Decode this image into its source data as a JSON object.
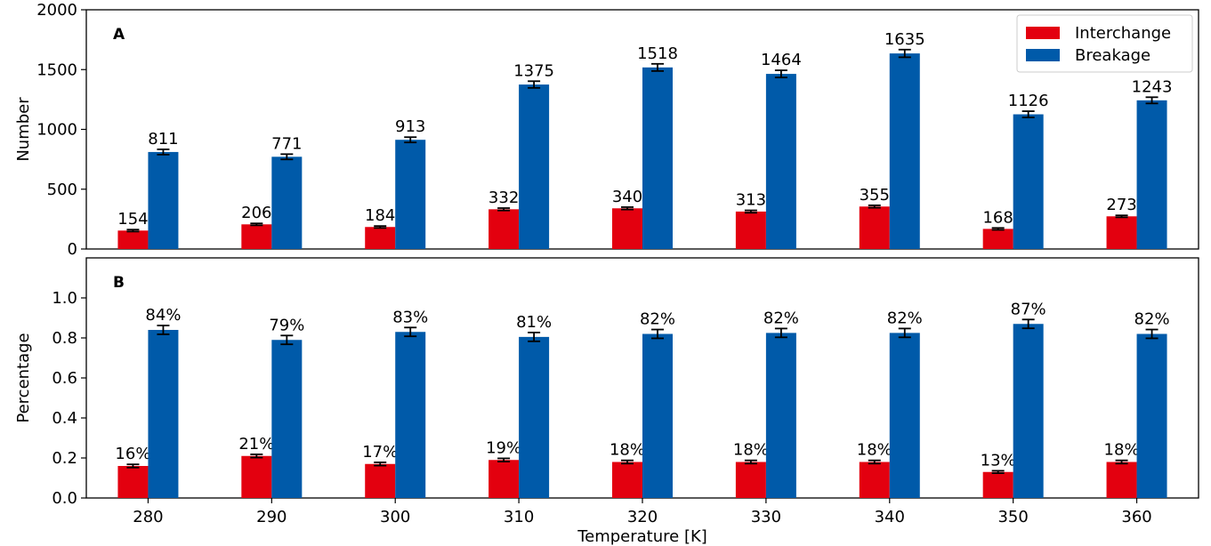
{
  "figure": {
    "xlabel": "Temperature [K]"
  },
  "legend": [
    {
      "label": "Interchange",
      "color": "#e3000f"
    },
    {
      "label": "Breakage",
      "color": "#005aa9"
    }
  ],
  "chart_data": [
    {
      "type": "bar",
      "panel_label": "A",
      "ylabel": "Number",
      "xlabel": "",
      "categories": [
        "280",
        "290",
        "300",
        "310",
        "320",
        "330",
        "340",
        "350",
        "360"
      ],
      "ylim": [
        0,
        2000
      ],
      "yticks": [
        "0",
        "500",
        "1000",
        "1500",
        "2000"
      ],
      "ytick_values": [
        0,
        500,
        1000,
        1500,
        2000
      ],
      "legend_position": "top-right",
      "series": [
        {
          "name": "Interchange",
          "color": "#e3000f",
          "values": [
            154,
            206,
            184,
            332,
            340,
            313,
            355,
            168,
            273
          ],
          "errors": [
            8,
            8,
            8,
            10,
            10,
            10,
            10,
            8,
            8
          ],
          "labels": [
            "154",
            "206",
            "184",
            "332",
            "340",
            "313",
            "355",
            "168",
            "273"
          ]
        },
        {
          "name": "Breakage",
          "color": "#005aa9",
          "values": [
            811,
            771,
            913,
            1375,
            1518,
            1464,
            1635,
            1126,
            1243
          ],
          "errors": [
            22,
            22,
            22,
            28,
            30,
            30,
            32,
            26,
            26
          ],
          "labels": [
            "811",
            "771",
            "913",
            "1375",
            "1518",
            "1464",
            "1635",
            "1126",
            "1243"
          ]
        }
      ]
    },
    {
      "type": "bar",
      "panel_label": "B",
      "ylabel": "Percentage",
      "xlabel": "Temperature [K]",
      "categories": [
        "280",
        "290",
        "300",
        "310",
        "320",
        "330",
        "340",
        "350",
        "360"
      ],
      "ylim": [
        0,
        1.2
      ],
      "yticks": [
        "0.0",
        "0.2",
        "0.4",
        "0.6",
        "0.8",
        "1.0"
      ],
      "ytick_values": [
        0,
        0.2,
        0.4,
        0.6,
        0.8,
        1.0
      ],
      "series": [
        {
          "name": "Interchange",
          "color": "#e3000f",
          "values": [
            0.16,
            0.21,
            0.17,
            0.19,
            0.18,
            0.18,
            0.18,
            0.13,
            0.18
          ],
          "errors": [
            0.008,
            0.008,
            0.008,
            0.008,
            0.008,
            0.008,
            0.008,
            0.006,
            0.008
          ],
          "labels": [
            "16%",
            "21%",
            "17%",
            "19%",
            "18%",
            "18%",
            "18%",
            "13%",
            "18%"
          ]
        },
        {
          "name": "Breakage",
          "color": "#005aa9",
          "values": [
            0.84,
            0.79,
            0.83,
            0.805,
            0.82,
            0.825,
            0.825,
            0.87,
            0.82
          ],
          "errors": [
            0.022,
            0.022,
            0.022,
            0.022,
            0.022,
            0.022,
            0.022,
            0.022,
            0.022
          ],
          "labels": [
            "84%",
            "79%",
            "83%",
            "81%",
            "82%",
            "82%",
            "82%",
            "87%",
            "82%"
          ]
        }
      ]
    }
  ]
}
